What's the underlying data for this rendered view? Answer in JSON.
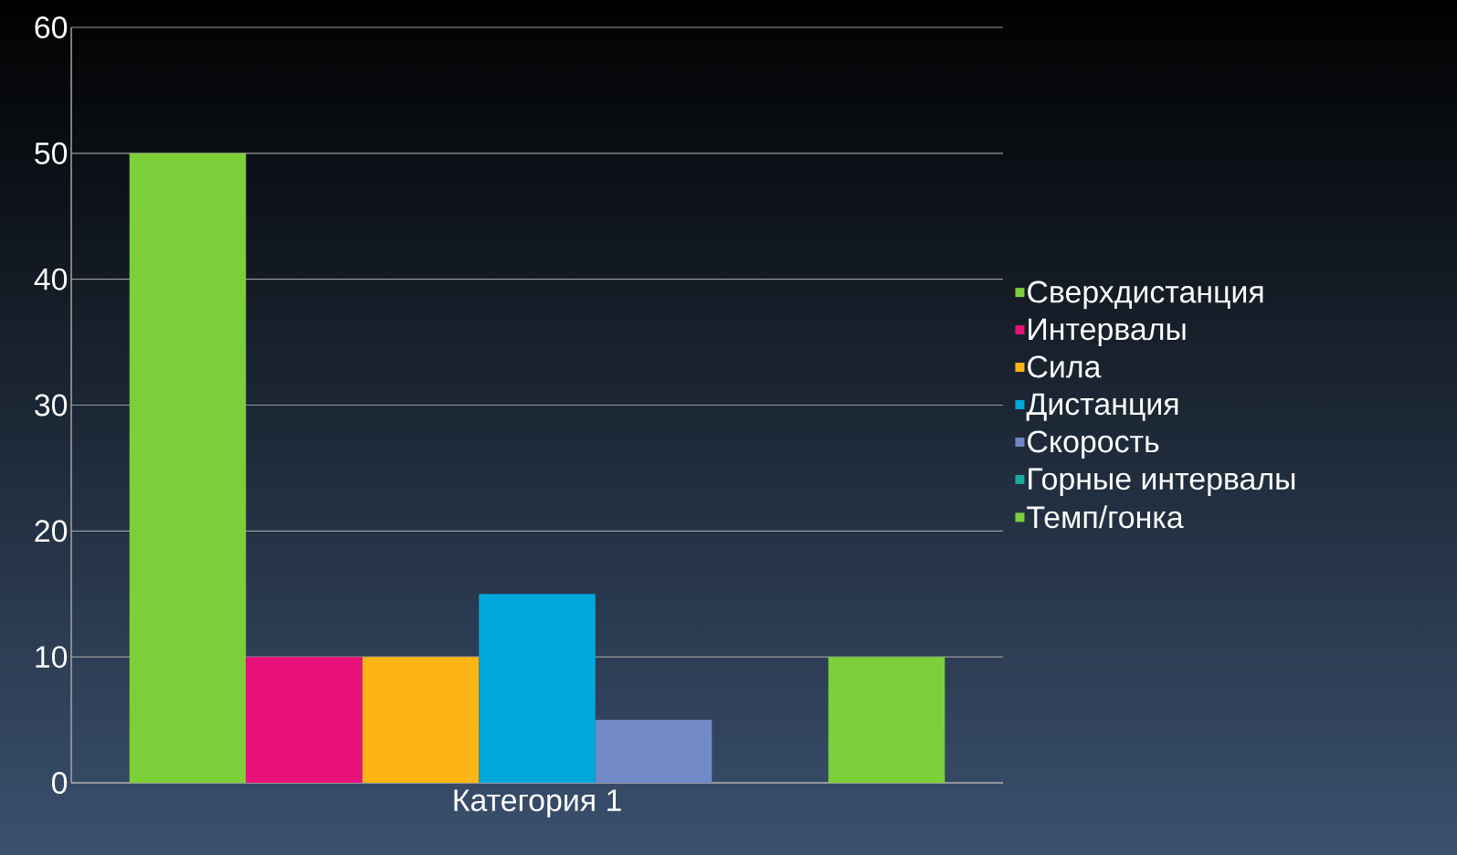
{
  "chart_data": {
    "type": "bar",
    "categories": [
      "Категория 1"
    ],
    "series": [
      {
        "name": "Сверхдистанция",
        "color": "#7dcf3a",
        "values": [
          50
        ]
      },
      {
        "name": "Интервалы",
        "color": "#e8127a",
        "values": [
          10
        ]
      },
      {
        "name": "Сила",
        "color": "#fdb515",
        "values": [
          10
        ]
      },
      {
        "name": "Дистанция",
        "color": "#00a8dc",
        "values": [
          15
        ]
      },
      {
        "name": "Скорость",
        "color": "#7289c8",
        "values": [
          5
        ]
      },
      {
        "name": "Горные интервалы",
        "color": "#1aa99a",
        "values": [
          0
        ]
      },
      {
        "name": "Темп/гонка",
        "color": "#7dcf3a",
        "values": [
          10
        ]
      }
    ],
    "ylim": [
      0,
      60
    ],
    "yticks": [
      0,
      10,
      20,
      30,
      40,
      50,
      60
    ],
    "grid": "y",
    "legend": "right"
  }
}
